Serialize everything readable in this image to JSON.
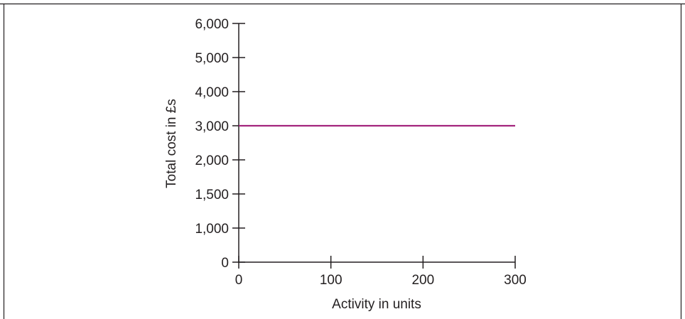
{
  "chart_data": {
    "type": "line",
    "xlabel": "Activity in units",
    "ylabel": "Total cost in £s",
    "xlim": [
      0,
      300
    ],
    "ylim": [
      0,
      6000
    ],
    "x_ticks": [
      {
        "value": 0,
        "label": "0"
      },
      {
        "value": 100,
        "label": "100"
      },
      {
        "value": 200,
        "label": "200"
      },
      {
        "value": 300,
        "label": "300"
      }
    ],
    "y_ticks": [
      {
        "index": 0,
        "label": "0"
      },
      {
        "index": 1,
        "label": "1,000"
      },
      {
        "index": 2,
        "label": "1,500"
      },
      {
        "index": 3,
        "label": "2,000"
      },
      {
        "index": 4,
        "label": "3,000"
      },
      {
        "index": 5,
        "label": "4,000"
      },
      {
        "index": 6,
        "label": "5,000"
      },
      {
        "index": 7,
        "label": "6,000"
      }
    ],
    "series": [
      {
        "x": [
          0,
          300
        ],
        "y": [
          3000,
          3000
        ],
        "color": "#a3247d"
      }
    ],
    "grid": false,
    "legend": "none",
    "colors": {
      "axis": "#231f20",
      "frame": "#231f20",
      "line": "#a3247d"
    }
  }
}
